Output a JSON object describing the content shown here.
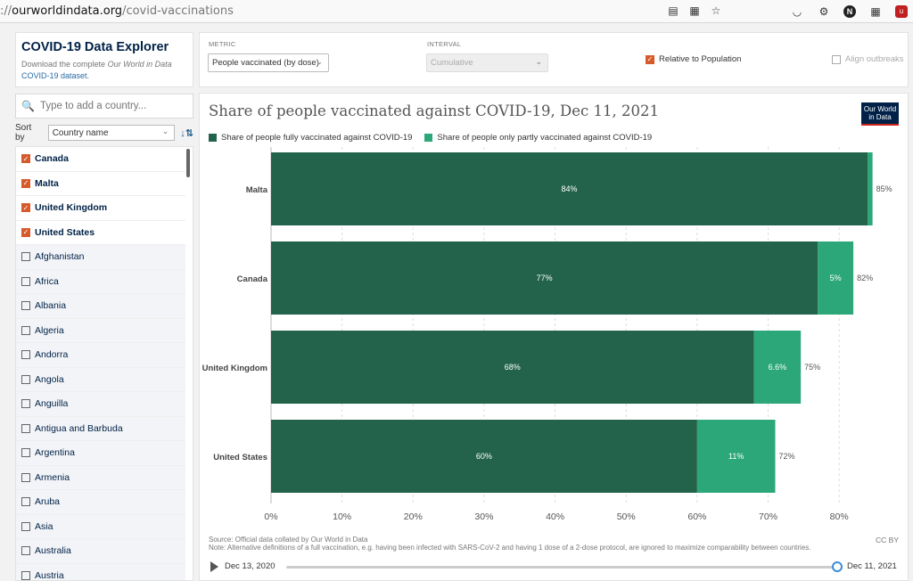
{
  "browser": {
    "url_prefix": "://",
    "url_domain": "ourworldindata.org",
    "url_path": "/covid-vaccinations"
  },
  "explorer": {
    "title": "COVID-19 Data Explorer",
    "desc_prefix": "Download the complete ",
    "desc_italic": "Our World in Data",
    "desc_link": "COVID-19 dataset."
  },
  "search": {
    "placeholder": "Type to add a country..."
  },
  "sort": {
    "label": "Sort by",
    "value": "Country name"
  },
  "countries": [
    {
      "name": "Canada",
      "checked": true
    },
    {
      "name": "Malta",
      "checked": true
    },
    {
      "name": "United Kingdom",
      "checked": true
    },
    {
      "name": "United States",
      "checked": true
    },
    {
      "name": "Afghanistan",
      "checked": false
    },
    {
      "name": "Africa",
      "checked": false
    },
    {
      "name": "Albania",
      "checked": false
    },
    {
      "name": "Algeria",
      "checked": false
    },
    {
      "name": "Andorra",
      "checked": false
    },
    {
      "name": "Angola",
      "checked": false
    },
    {
      "name": "Anguilla",
      "checked": false
    },
    {
      "name": "Antigua and Barbuda",
      "checked": false
    },
    {
      "name": "Argentina",
      "checked": false
    },
    {
      "name": "Armenia",
      "checked": false
    },
    {
      "name": "Aruba",
      "checked": false
    },
    {
      "name": "Asia",
      "checked": false
    },
    {
      "name": "Australia",
      "checked": false
    },
    {
      "name": "Austria",
      "checked": false
    }
  ],
  "controls": {
    "metric_label": "METRIC",
    "metric_value": "People vaccinated (by dose)",
    "interval_label": "INTERVAL",
    "interval_value": "Cumulative",
    "relative_label": "Relative to Population",
    "relative_checked": true,
    "align_label": "Align outbreaks",
    "align_checked": false
  },
  "chart": {
    "title": "Share of people vaccinated against COVID-19, Dec 11, 2021",
    "logo_line1": "Our World",
    "logo_line2": "in Data",
    "source": "Source: Official data collated by Our World in Data",
    "note": "Note: Alternative definitions of a full vaccination, e.g. having been infected with SARS-CoV-2 and having 1 dose of a 2-dose protocol, are ignored to maximize comparability between countries.",
    "license": "CC BY",
    "timeline_start": "Dec 13, 2020",
    "timeline_end": "Dec 11, 2021",
    "timeline_position": 1.0,
    "colors": {
      "full": "#23634b",
      "partial": "#2ca77a"
    }
  },
  "chart_data": {
    "type": "bar",
    "orientation": "horizontal",
    "stacked": true,
    "categories": [
      "Malta",
      "Canada",
      "United Kingdom",
      "United States"
    ],
    "series": [
      {
        "name": "Share of people fully vaccinated against COVID-19",
        "values": [
          84,
          77,
          68,
          60
        ],
        "labels": [
          "84%",
          "77%",
          "68%",
          "60%"
        ]
      },
      {
        "name": "Share of people only partly vaccinated against COVID-19",
        "values": [
          0.7,
          5,
          6.6,
          11
        ],
        "labels": [
          "",
          "5%",
          "6.6%",
          "11%"
        ]
      }
    ],
    "totals": [
      "85%",
      "82%",
      "75%",
      "72%"
    ],
    "xlim": [
      0,
      85
    ],
    "xticks": [
      "0%",
      "10%",
      "20%",
      "30%",
      "40%",
      "50%",
      "60%",
      "70%",
      "80%"
    ],
    "legend_position": "top-left"
  }
}
